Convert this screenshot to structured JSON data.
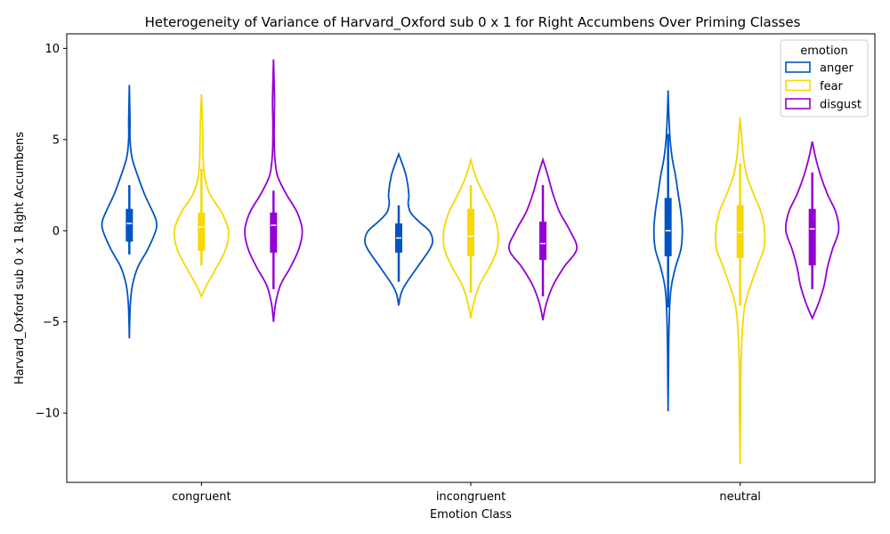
{
  "chart_data": {
    "type": "violin",
    "title": "Heterogeneity of Variance of Harvard_Oxford sub 0 x 1 for Right Accumbens Over Priming Classes",
    "xlabel": "Emotion Class",
    "ylabel": "Harvard_Oxford sub 0 x 1 Right Accumbens",
    "categories": [
      "congruent",
      "incongruent",
      "neutral"
    ],
    "ylim": [
      -13.8,
      10.8
    ],
    "yticks": [
      10,
      5,
      0,
      -5,
      -10
    ],
    "ytick_labels": [
      "10",
      "5",
      "0",
      "−5",
      "−10"
    ],
    "legend": {
      "title": "emotion",
      "position": "top-right"
    },
    "series": [
      {
        "name": "anger",
        "color": "#0055c4",
        "violins": [
          {
            "min": -5.9,
            "max": 8.0,
            "q1": -0.6,
            "median": 0.4,
            "q3": 1.2,
            "whisker_low": -1.3,
            "whisker_high": 2.5,
            "width": 1.0,
            "profile": [
              [
                -5.9,
                0.0
              ],
              [
                -5.0,
                0.01
              ],
              [
                -4.0,
                0.03
              ],
              [
                -3.0,
                0.09
              ],
              [
                -2.0,
                0.25
              ],
              [
                -1.0,
                0.55
              ],
              [
                0.0,
                0.78
              ],
              [
                0.5,
                0.8
              ],
              [
                1.0,
                0.7
              ],
              [
                2.0,
                0.45
              ],
              [
                3.0,
                0.25
              ],
              [
                4.0,
                0.08
              ],
              [
                5.0,
                0.02
              ],
              [
                6.0,
                0.02
              ],
              [
                7.0,
                0.01
              ],
              [
                8.0,
                0.0
              ]
            ]
          },
          {
            "min": -4.1,
            "max": 4.2,
            "q1": -1.2,
            "median": -0.4,
            "q3": 0.4,
            "whisker_low": -2.8,
            "whisker_high": 1.4,
            "width": 1.0,
            "profile": [
              [
                -4.1,
                0.0
              ],
              [
                -3.5,
                0.06
              ],
              [
                -3.0,
                0.18
              ],
              [
                -2.0,
                0.55
              ],
              [
                -1.0,
                0.92
              ],
              [
                -0.5,
                1.0
              ],
              [
                0.0,
                0.9
              ],
              [
                0.5,
                0.6
              ],
              [
                1.0,
                0.35
              ],
              [
                1.5,
                0.28
              ],
              [
                2.0,
                0.3
              ],
              [
                3.0,
                0.22
              ],
              [
                3.8,
                0.08
              ],
              [
                4.2,
                0.0
              ]
            ]
          },
          {
            "min": -9.9,
            "max": 7.7,
            "q1": -1.4,
            "median": 0.0,
            "q3": 1.8,
            "whisker_low": -4.2,
            "whisker_high": 5.3,
            "width": 1.0,
            "profile": [
              [
                -9.9,
                0.0
              ],
              [
                -8.0,
                0.01
              ],
              [
                -6.0,
                0.02
              ],
              [
                -4.0,
                0.05
              ],
              [
                -3.0,
                0.1
              ],
              [
                -2.0,
                0.22
              ],
              [
                -1.0,
                0.38
              ],
              [
                0.0,
                0.42
              ],
              [
                1.0,
                0.38
              ],
              [
                2.0,
                0.3
              ],
              [
                3.0,
                0.22
              ],
              [
                4.0,
                0.12
              ],
              [
                5.0,
                0.06
              ],
              [
                6.0,
                0.03
              ],
              [
                7.0,
                0.01
              ],
              [
                7.7,
                0.0
              ]
            ]
          }
        ]
      },
      {
        "name": "fear",
        "color": "#f7d800",
        "violins": [
          {
            "min": -3.6,
            "max": 7.5,
            "q1": -1.1,
            "median": 0.2,
            "q3": 1.0,
            "whisker_low": -1.9,
            "whisker_high": 3.4,
            "width": 1.0,
            "profile": [
              [
                -3.6,
                0.0
              ],
              [
                -3.0,
                0.15
              ],
              [
                -2.0,
                0.45
              ],
              [
                -1.0,
                0.72
              ],
              [
                0.0,
                0.8
              ],
              [
                1.0,
                0.6
              ],
              [
                2.0,
                0.25
              ],
              [
                3.0,
                0.09
              ],
              [
                4.0,
                0.05
              ],
              [
                5.0,
                0.04
              ],
              [
                6.0,
                0.03
              ],
              [
                7.0,
                0.01
              ],
              [
                7.5,
                0.0
              ]
            ]
          },
          {
            "min": -4.8,
            "max": 3.9,
            "q1": -1.4,
            "median": -0.3,
            "q3": 1.2,
            "whisker_low": -3.4,
            "whisker_high": 2.5,
            "width": 1.0,
            "profile": [
              [
                -4.8,
                0.0
              ],
              [
                -4.0,
                0.08
              ],
              [
                -3.0,
                0.25
              ],
              [
                -2.0,
                0.55
              ],
              [
                -1.0,
                0.78
              ],
              [
                0.0,
                0.8
              ],
              [
                1.0,
                0.65
              ],
              [
                2.0,
                0.38
              ],
              [
                3.0,
                0.14
              ],
              [
                3.9,
                0.0
              ]
            ]
          },
          {
            "min": -12.8,
            "max": 6.2,
            "q1": -1.5,
            "median": -0.1,
            "q3": 1.4,
            "whisker_low": -4.1,
            "whisker_high": 3.7,
            "width": 1.0,
            "profile": [
              [
                -12.8,
                0.0
              ],
              [
                -11.0,
                0.01
              ],
              [
                -10.0,
                0.02
              ],
              [
                -8.0,
                0.02
              ],
              [
                -6.0,
                0.05
              ],
              [
                -4.0,
                0.15
              ],
              [
                -2.0,
                0.5
              ],
              [
                -1.0,
                0.7
              ],
              [
                0.0,
                0.72
              ],
              [
                1.0,
                0.62
              ],
              [
                2.0,
                0.4
              ],
              [
                3.0,
                0.2
              ],
              [
                4.0,
                0.1
              ],
              [
                5.0,
                0.05
              ],
              [
                6.2,
                0.0
              ]
            ]
          }
        ]
      },
      {
        "name": "disgust",
        "color": "#9400d3",
        "violins": [
          {
            "min": -5.0,
            "max": 9.4,
            "q1": -1.2,
            "median": 0.3,
            "q3": 1.0,
            "whisker_low": -3.2,
            "whisker_high": 2.2,
            "width": 1.0,
            "profile": [
              [
                -5.0,
                0.0
              ],
              [
                -4.0,
                0.06
              ],
              [
                -3.0,
                0.2
              ],
              [
                -2.0,
                0.5
              ],
              [
                -1.0,
                0.75
              ],
              [
                0.0,
                0.85
              ],
              [
                1.0,
                0.7
              ],
              [
                2.0,
                0.38
              ],
              [
                3.0,
                0.12
              ],
              [
                4.0,
                0.04
              ],
              [
                5.0,
                0.02
              ],
              [
                6.0,
                0.02
              ],
              [
                7.0,
                0.03
              ],
              [
                8.0,
                0.02
              ],
              [
                9.4,
                0.0
              ]
            ]
          },
          {
            "min": -4.9,
            "max": 3.9,
            "q1": -1.6,
            "median": -0.7,
            "q3": 0.5,
            "whisker_low": -3.6,
            "whisker_high": 2.5,
            "width": 1.0,
            "profile": [
              [
                -4.9,
                0.0
              ],
              [
                -4.0,
                0.1
              ],
              [
                -3.0,
                0.3
              ],
              [
                -2.0,
                0.62
              ],
              [
                -1.0,
                1.0
              ],
              [
                0.0,
                0.8
              ],
              [
                1.0,
                0.5
              ],
              [
                2.0,
                0.3
              ],
              [
                3.0,
                0.15
              ],
              [
                3.9,
                0.0
              ]
            ]
          },
          {
            "min": -4.8,
            "max": 4.9,
            "q1": -1.9,
            "median": 0.1,
            "q3": 1.2,
            "whisker_low": -3.2,
            "whisker_high": 3.2,
            "width": 1.0,
            "profile": [
              [
                -4.8,
                0.0
              ],
              [
                -4.0,
                0.18
              ],
              [
                -3.0,
                0.35
              ],
              [
                -2.0,
                0.45
              ],
              [
                -1.0,
                0.6
              ],
              [
                0.0,
                0.78
              ],
              [
                1.0,
                0.7
              ],
              [
                2.0,
                0.45
              ],
              [
                3.0,
                0.25
              ],
              [
                4.0,
                0.1
              ],
              [
                4.9,
                0.0
              ]
            ]
          }
        ]
      }
    ]
  }
}
